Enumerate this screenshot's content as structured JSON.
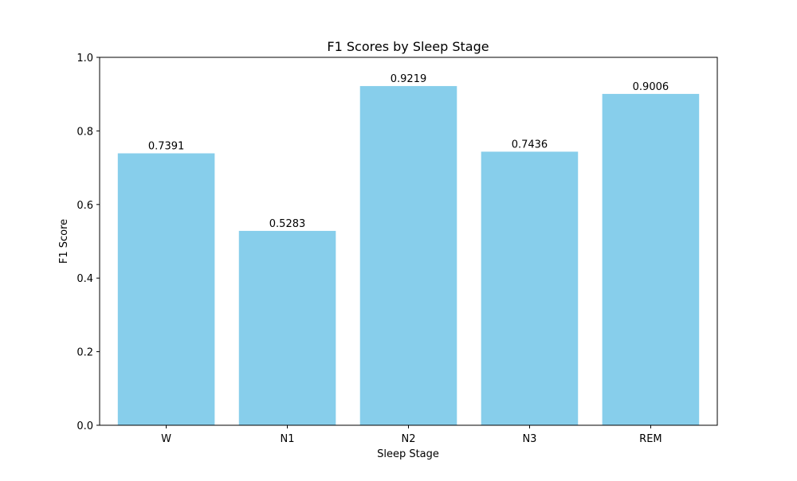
{
  "chart_data": {
    "type": "bar",
    "title": "F1 Scores by Sleep Stage",
    "xlabel": "Sleep Stage",
    "ylabel": "F1 Score",
    "categories": [
      "W",
      "N1",
      "N2",
      "N3",
      "REM"
    ],
    "values": [
      0.7391,
      0.5283,
      0.9219,
      0.7436,
      0.9006
    ],
    "value_labels": [
      "0.7391",
      "0.5283",
      "0.9219",
      "0.7436",
      "0.9006"
    ],
    "ylim": [
      0,
      1.0
    ],
    "yticks": [
      0.0,
      0.2,
      0.4,
      0.6,
      0.8,
      1.0
    ],
    "ytick_labels": [
      "0.0",
      "0.2",
      "0.4",
      "0.6",
      "0.8",
      "1.0"
    ],
    "bar_color": "#87ceeb",
    "grid": false,
    "legend": "none"
  }
}
